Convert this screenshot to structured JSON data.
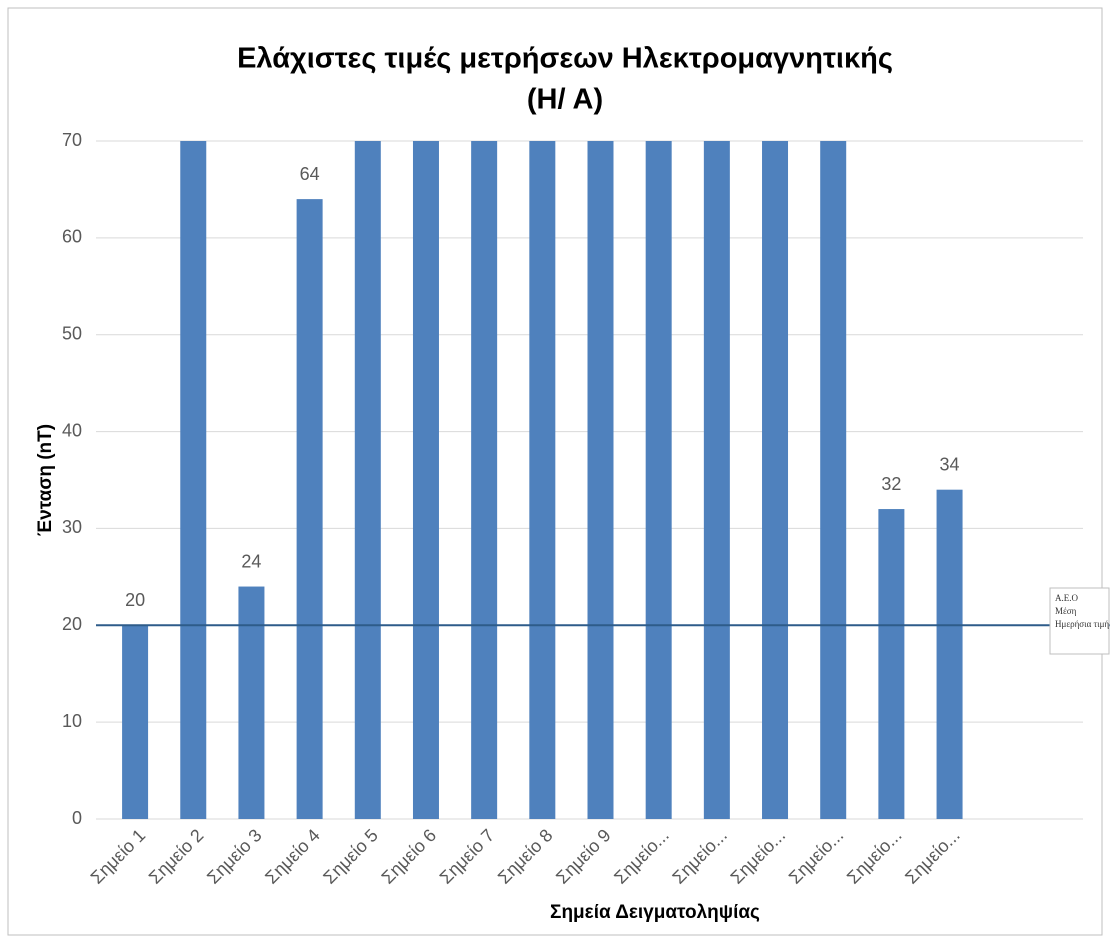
{
  "chart_data": {
    "type": "bar",
    "title": [
      "Ελάχιστες τιμές μετρήσεων Ηλεκτρομαγνητικής",
      "(Η/ Α)"
    ],
    "x_label": "Σημεία Δειγματοληψίας",
    "y_label": "Ένταση (nT)",
    "categories": [
      "Σημείο 1",
      "Σημείο 2",
      "Σημείο 3",
      "Σημείο 4",
      "Σημείο 5",
      "Σημείο 6",
      "Σημείο 7",
      "Σημείο 8",
      "Σημείο 9",
      "Σημείο...",
      "Σημείο...",
      "Σημείο...",
      "Σημείο...",
      "Σημείο...",
      "Σημείο...",
      null,
      null
    ],
    "values": [
      20,
      70,
      24,
      64,
      70,
      70,
      70,
      70,
      70,
      70,
      70,
      70,
      70,
      32,
      34,
      null,
      null
    ],
    "value_labels": [
      "20",
      null,
      "24",
      "64",
      null,
      null,
      null,
      null,
      null,
      null,
      null,
      null,
      null,
      "32",
      "34",
      null,
      null
    ],
    "color": "#4f81bd",
    "ylim": [
      0,
      70
    ],
    "yticks": [
      0,
      10,
      20,
      30,
      40,
      50,
      60,
      70
    ],
    "grid": true,
    "reference_line": {
      "value": 20,
      "color": "#2e5c8a",
      "label": [
        "A.E.O",
        "Μέση",
        "Ημερήσια τιμή"
      ]
    }
  }
}
